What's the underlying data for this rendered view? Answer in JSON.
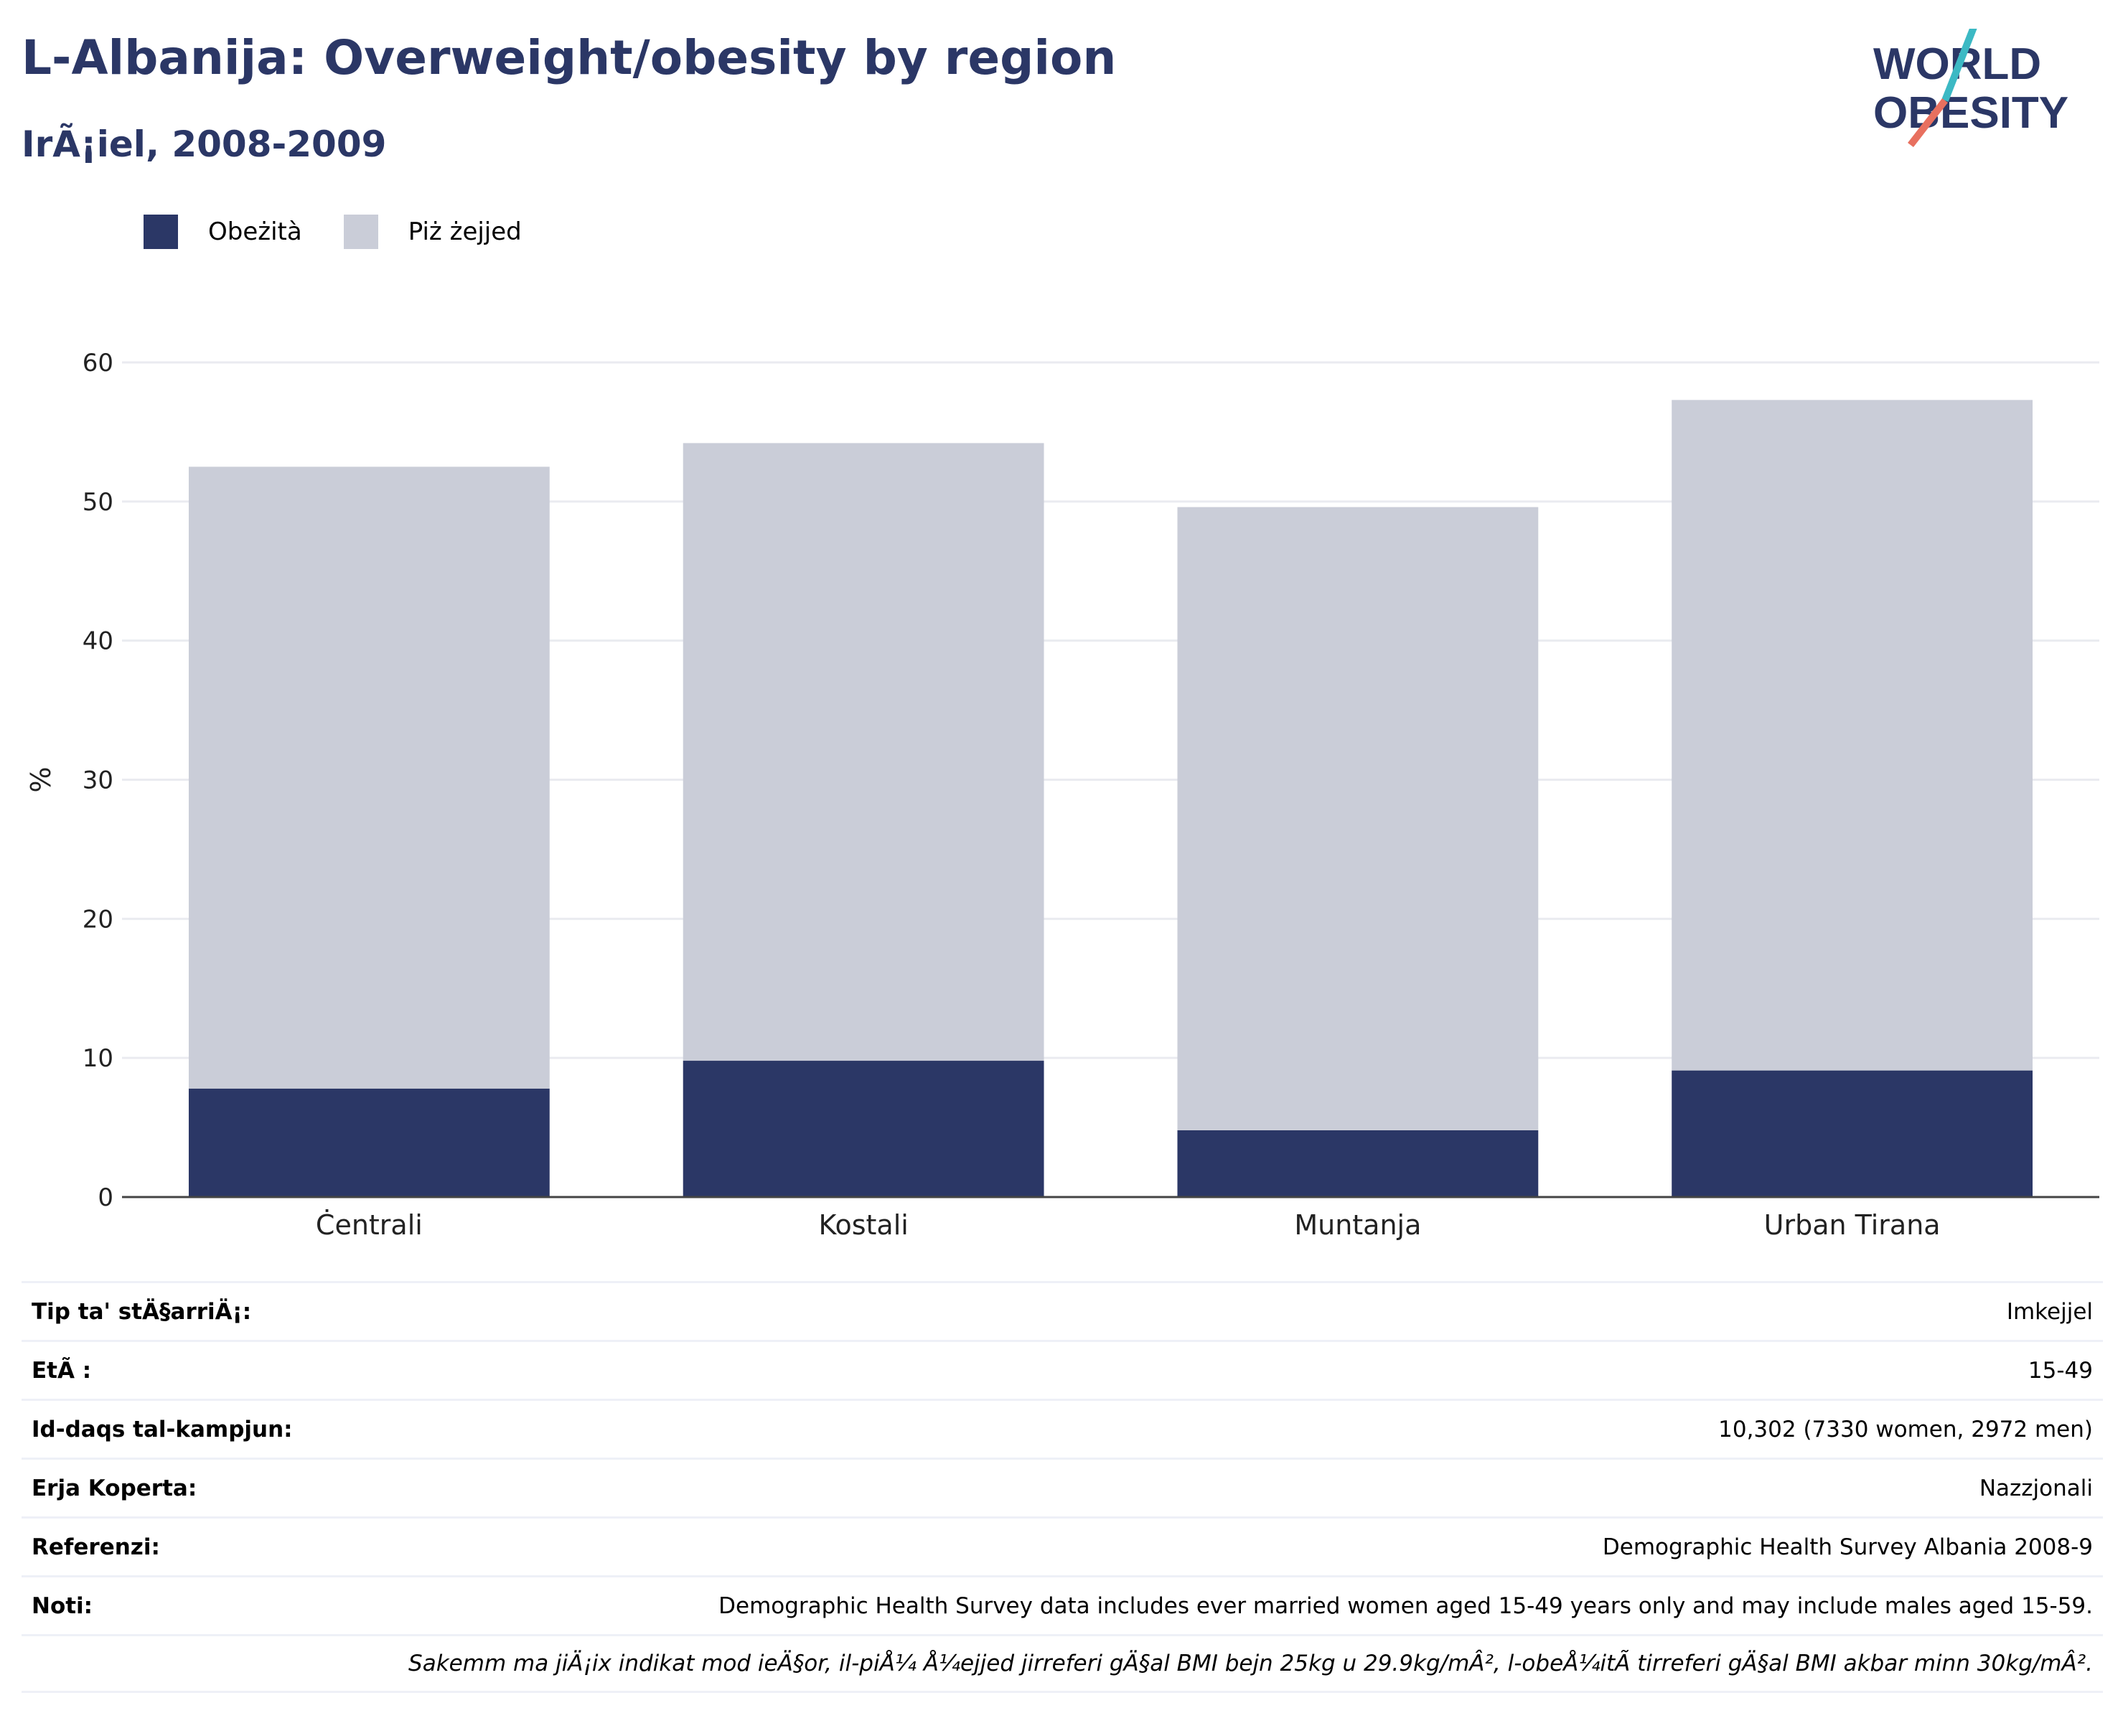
{
  "header": {
    "title": "L-Albanija: Overweight/obesity by region",
    "subtitle": "IrÃ¡iel, 2008-2009"
  },
  "logo": {
    "line1": "WORLD",
    "line2": "OBESITY",
    "colors": {
      "text": "#2b3766",
      "slash_top": "#3cb9c4",
      "slash_bottom": "#e8705f"
    }
  },
  "legend": {
    "items": [
      {
        "label": "Obeżità",
        "color": "#2b3766"
      },
      {
        "label": "Piż żejjed",
        "color": "#cacdd8"
      }
    ]
  },
  "chart_data": {
    "type": "bar",
    "stacked": true,
    "categories": [
      "Ċentrali",
      "Kostali",
      "Muntanja",
      "Urban Tirana"
    ],
    "series": [
      {
        "name": "Obeżità",
        "color": "#2b3766",
        "values": [
          7.8,
          9.8,
          4.8,
          9.1
        ]
      },
      {
        "name": "Piż żejjed",
        "color": "#cacdd8",
        "values": [
          44.7,
          44.4,
          44.8,
          48.2
        ]
      }
    ],
    "ylabel": "%",
    "ylim": [
      0,
      60
    ],
    "yticks": [
      0,
      10,
      20,
      30,
      40,
      50,
      60
    ],
    "grid": true,
    "legend_position": "top-left"
  },
  "info": {
    "rows": [
      {
        "label": "Tip ta' stÄ§arriÄ¡:",
        "value": "Imkejjel"
      },
      {
        "label": "EtÃ :",
        "value": "15-49"
      },
      {
        "label": "Id-daqs tal-kampjun:",
        "value": "10,302 (7330 women, 2972 men)"
      },
      {
        "label": "Erja Koperta:",
        "value": "Nazzjonali"
      },
      {
        "label": "Referenzi:",
        "value": "Demographic Health Survey Albania 2008-9"
      },
      {
        "label": "Noti:",
        "value": "Demographic Health Survey data includes ever married women aged 15-49 years only and may include males aged 15-59."
      }
    ],
    "footnote": "Sakemm ma jiÄ¡ix indikat mod ieÄ§or, il-piÅ¼ Å¼ejjed jirreferi gÄ§al BMI bejn 25kg u 29.9kg/mÂ², l-obeÅ¼itÃ  tirreferi gÄ§al BMI akbar minn 30kg/mÂ²."
  }
}
